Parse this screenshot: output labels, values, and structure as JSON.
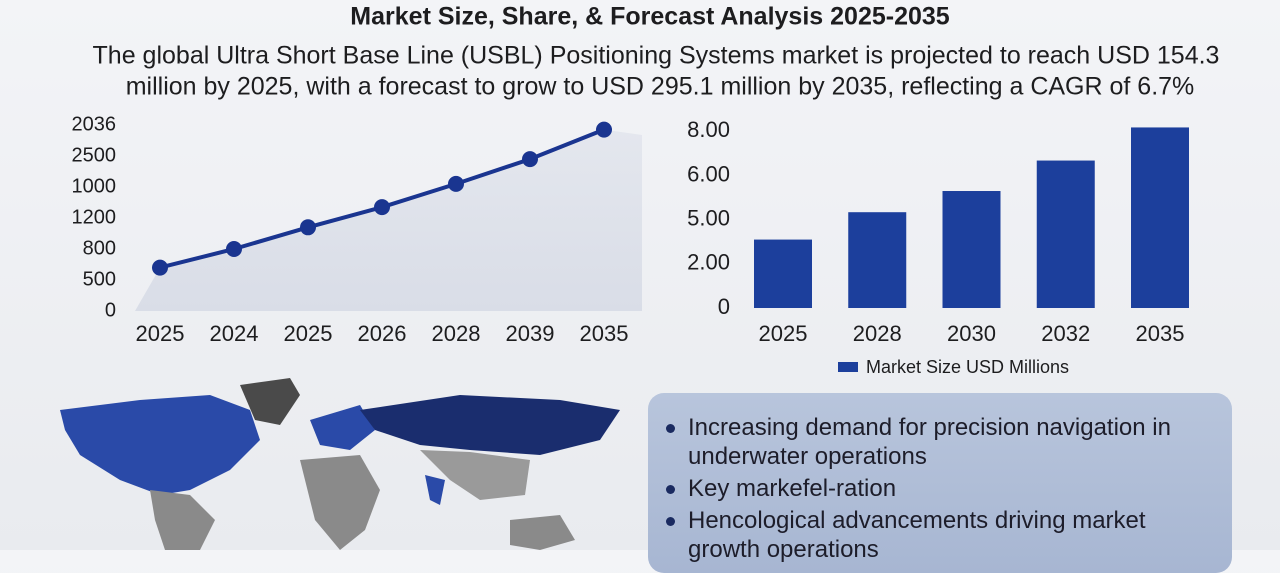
{
  "header": {
    "title": "Market Size, Share, & Forecast Analysis 2025-2035",
    "subtitle": [
      "The global Ultra Short Base Line (USBL) Positioning Systems market is projected to reach USD 154.3",
      "million by 2025, with a forecast to grow to USD 295.1 million by 2035, reflecting a CAGR of 6.7%"
    ]
  },
  "chart_data": [
    {
      "type": "line",
      "categories": [
        "2025",
        "2024",
        "2025",
        "2026",
        "2028",
        "2039",
        "2035"
      ],
      "values": [
        1.4,
        2.0,
        2.7,
        3.35,
        4.1,
        4.9,
        5.85
      ],
      "color": "#1a3590",
      "ylim": [
        0,
        6
      ],
      "yticks": [
        {
          "value": 0,
          "label": "0"
        },
        {
          "value": 1,
          "label": "500"
        },
        {
          "value": 2,
          "label": "800"
        },
        {
          "value": 3,
          "label": "1200"
        },
        {
          "value": 4,
          "label": "1000"
        },
        {
          "value": 5,
          "label": "2500"
        },
        {
          "value": 6,
          "label": "2036"
        }
      ]
    },
    {
      "type": "bar",
      "categories": [
        "2025",
        "2028",
        "2030",
        "2032",
        "2035"
      ],
      "series": [
        {
          "name": "Market Size USD Millions",
          "color": "#1c3f9c",
          "values": [
            1.55,
            2.17,
            2.65,
            3.34,
            4.09
          ]
        }
      ],
      "ylim": [
        0,
        4.1
      ],
      "yticks": [
        {
          "value": 0,
          "label": "0"
        },
        {
          "value": 1,
          "label": "2.00"
        },
        {
          "value": 2,
          "label": "5.00"
        },
        {
          "value": 3,
          "label": "6.00"
        },
        {
          "value": 4,
          "label": "8.00"
        }
      ]
    }
  ],
  "bullets": [
    "Increasing demand for precision navigation in underwater operations",
    "Key markefel-ration",
    "Hencological advancements driving market growth operations"
  ]
}
